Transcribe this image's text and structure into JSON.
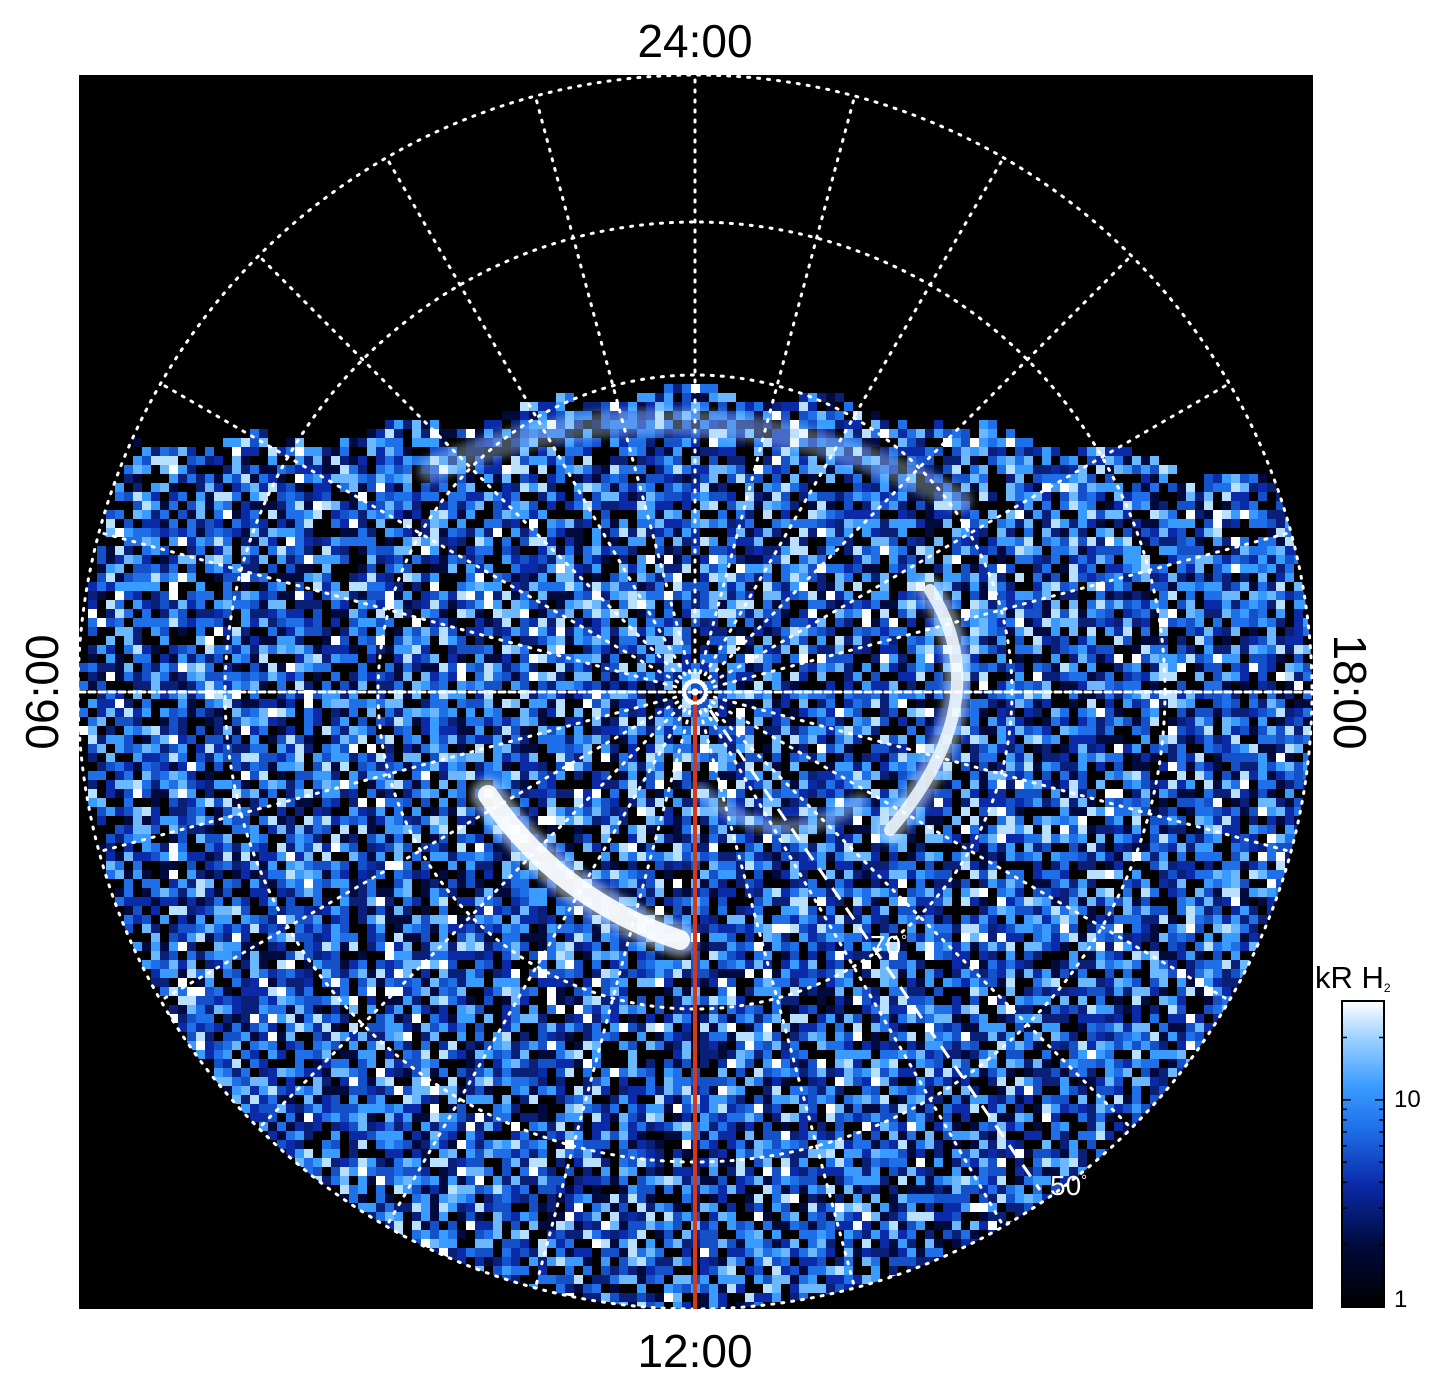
{
  "local_time_labels": {
    "top": "24:00",
    "bottom": "12:00",
    "left": "06:00",
    "right": "18:00"
  },
  "latitude_labels": {
    "lat70": "70",
    "lat50": "50",
    "degree_symbol": "°"
  },
  "colorbar": {
    "unit": "kR H",
    "unit_subscript": "2",
    "tick_10": "10",
    "tick_1": "1",
    "min": 1,
    "max": 30,
    "scale": "log",
    "colors": [
      "#000000",
      "#000a3c",
      "#0a2aa8",
      "#1e6fe8",
      "#3a9bff",
      "#9fd2ff",
      "#ffffff"
    ]
  },
  "colors": {
    "background": "#000000",
    "grid": "#ffffff",
    "meridian": "#d23a1e",
    "aurora": "#eaf6ff"
  }
}
